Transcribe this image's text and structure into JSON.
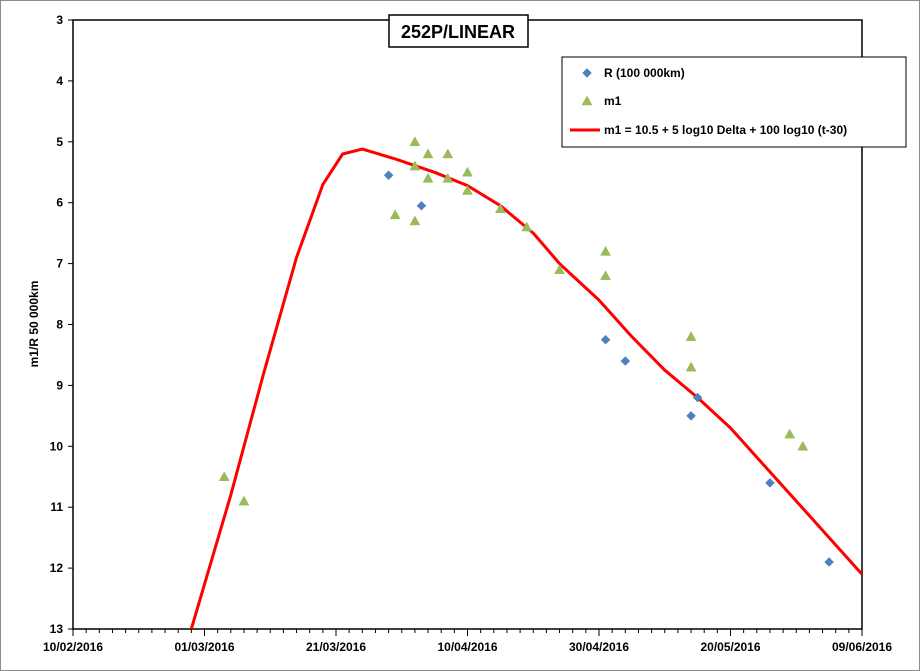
{
  "chart_data": {
    "type": "scatter",
    "title": "252P/LINEAR",
    "xlabel": "",
    "ylabel": "m1/R 50 000km",
    "x_type": "date",
    "xlim": [
      "2016-02-10",
      "2016-06-09"
    ],
    "x_tick_labels": [
      "10/02/2016",
      "01/03/2016",
      "21/03/2016",
      "10/04/2016",
      "30/04/2016",
      "20/05/2016",
      "09/06/2016"
    ],
    "x_tick_values": [
      "2016-02-10",
      "2016-03-01",
      "2016-03-21",
      "2016-04-10",
      "2016-04-30",
      "2016-05-20",
      "2016-06-09"
    ],
    "ylim": [
      3,
      13
    ],
    "y_inverted": true,
    "y_tick_labels": [
      "3",
      "4",
      "5",
      "6",
      "7",
      "8",
      "9",
      "10",
      "11",
      "12",
      "13"
    ],
    "grid": false,
    "legend_position": "top-right",
    "series": [
      {
        "name": "R (100 000km)",
        "marker": "diamond",
        "color": "#4f81bd",
        "points": [
          {
            "x": "2016-03-29",
            "y": 5.55
          },
          {
            "x": "2016-04-03",
            "y": 6.05
          },
          {
            "x": "2016-05-01",
            "y": 8.25
          },
          {
            "x": "2016-05-04",
            "y": 8.6
          },
          {
            "x": "2016-05-14",
            "y": 9.5
          },
          {
            "x": "2016-05-15",
            "y": 9.2
          },
          {
            "x": "2016-05-26",
            "y": 10.6
          },
          {
            "x": "2016-06-04",
            "y": 11.9
          }
        ]
      },
      {
        "name": "m1",
        "marker": "triangle",
        "color": "#9bbb59",
        "points": [
          {
            "x": "2016-03-04",
            "y": 10.5
          },
          {
            "x": "2016-03-07",
            "y": 10.9
          },
          {
            "x": "2016-03-30",
            "y": 6.2
          },
          {
            "x": "2016-04-02",
            "y": 5.0
          },
          {
            "x": "2016-04-02",
            "y": 5.4
          },
          {
            "x": "2016-04-02",
            "y": 6.3
          },
          {
            "x": "2016-04-04",
            "y": 5.2
          },
          {
            "x": "2016-04-04",
            "y": 5.6
          },
          {
            "x": "2016-04-07",
            "y": 5.2
          },
          {
            "x": "2016-04-07",
            "y": 5.6
          },
          {
            "x": "2016-04-10",
            "y": 5.5
          },
          {
            "x": "2016-04-10",
            "y": 5.8
          },
          {
            "x": "2016-04-15",
            "y": 6.1
          },
          {
            "x": "2016-04-19",
            "y": 6.4
          },
          {
            "x": "2016-04-24",
            "y": 7.1
          },
          {
            "x": "2016-05-01",
            "y": 6.8
          },
          {
            "x": "2016-05-01",
            "y": 7.2
          },
          {
            "x": "2016-05-14",
            "y": 8.2
          },
          {
            "x": "2016-05-14",
            "y": 8.7
          },
          {
            "x": "2016-05-29",
            "y": 9.8
          },
          {
            "x": "2016-05-31",
            "y": 10.0
          }
        ]
      },
      {
        "name": "m1 = 10.5 + 5 log10 Delta + 100 log10 (t-30)",
        "type": "line",
        "color": "#ff0000",
        "points": [
          {
            "x": "2016-02-28",
            "y": 13.0
          },
          {
            "x": "2016-03-05",
            "y": 10.8
          },
          {
            "x": "2016-03-10",
            "y": 8.8
          },
          {
            "x": "2016-03-15",
            "y": 6.9
          },
          {
            "x": "2016-03-19",
            "y": 5.7
          },
          {
            "x": "2016-03-22",
            "y": 5.2
          },
          {
            "x": "2016-03-25",
            "y": 5.12
          },
          {
            "x": "2016-03-30",
            "y": 5.28
          },
          {
            "x": "2016-04-05",
            "y": 5.5
          },
          {
            "x": "2016-04-10",
            "y": 5.72
          },
          {
            "x": "2016-04-15",
            "y": 6.05
          },
          {
            "x": "2016-04-20",
            "y": 6.5
          },
          {
            "x": "2016-04-24",
            "y": 7.0
          },
          {
            "x": "2016-04-30",
            "y": 7.6
          },
          {
            "x": "2016-05-05",
            "y": 8.2
          },
          {
            "x": "2016-05-10",
            "y": 8.75
          },
          {
            "x": "2016-05-15",
            "y": 9.2
          },
          {
            "x": "2016-05-20",
            "y": 9.7
          },
          {
            "x": "2016-05-25",
            "y": 10.3
          },
          {
            "x": "2016-05-30",
            "y": 10.9
          },
          {
            "x": "2016-06-04",
            "y": 11.5
          },
          {
            "x": "2016-06-09",
            "y": 12.1
          }
        ]
      }
    ]
  }
}
